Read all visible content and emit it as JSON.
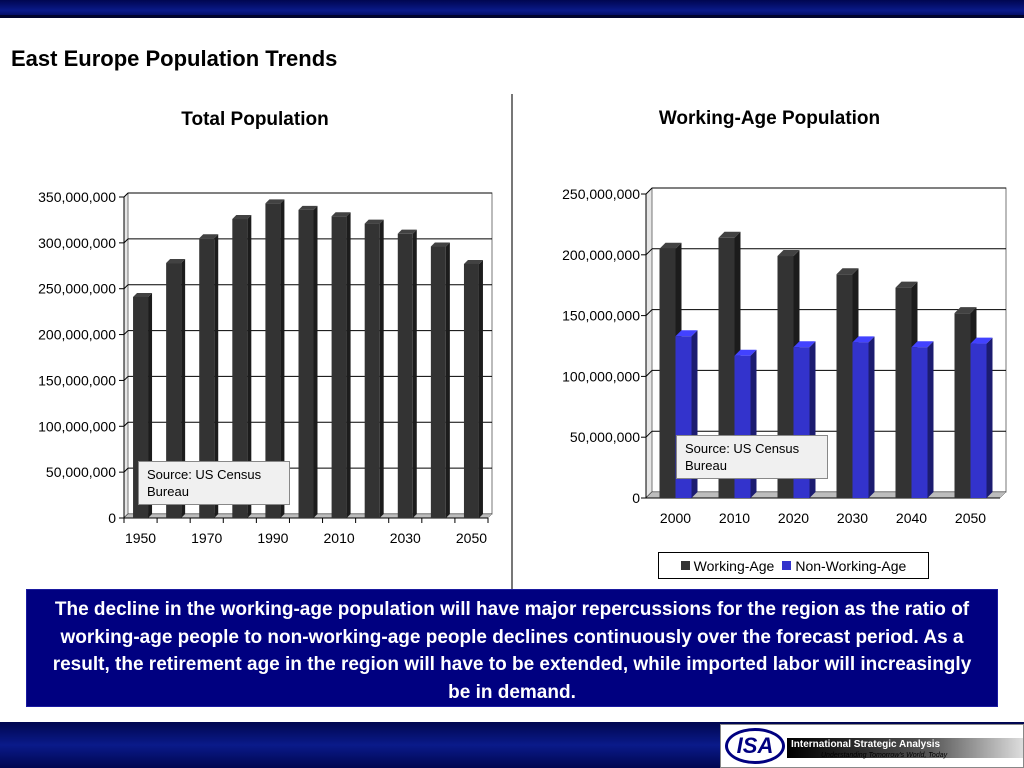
{
  "slide": {
    "title": "East Europe Population Trends",
    "callout": "The decline in the working-age population will have major repercussions for the region as the ratio of working-age people to non-working-age people declines continuously over the forecast period.  As a result, the retirement age in the region will have to be extended, while imported labor will increasingly be in demand."
  },
  "logo": {
    "mark": "ISA",
    "name": "International Strategic Analysis",
    "tagline": "Understanding Tomorrow's World, Today"
  },
  "colors": {
    "bar_dark": "#333333",
    "bar_blue": "#3333cc",
    "callout_bg": "#000080",
    "bar_top_band": "#000650"
  },
  "chart_data": [
    {
      "type": "bar",
      "title": "Total Population",
      "categories": [
        "1950",
        "1960",
        "1970",
        "1980",
        "1990",
        "2000",
        "2010",
        "2020",
        "2030",
        "2040",
        "2050"
      ],
      "x_tick_labels": [
        "1950",
        "1970",
        "1990",
        "2010",
        "2030",
        "2050"
      ],
      "series": [
        {
          "values": [
            241000000,
            278000000,
            305000000,
            326000000,
            343000000,
            336000000,
            329000000,
            321000000,
            310000000,
            296000000,
            277000000
          ]
        }
      ],
      "y_tick_labels": [
        "0",
        "50,000,000",
        "100,000,000",
        "150,000,000",
        "200,000,000",
        "250,000,000",
        "300,000,000",
        "350,000,000"
      ],
      "ylim": [
        0,
        350000000
      ],
      "grid": true,
      "annotation": "Source: US Census Bureau"
    },
    {
      "type": "bar",
      "title": "Working-Age Population",
      "categories": [
        "2000",
        "2010",
        "2020",
        "2030",
        "2040",
        "2050"
      ],
      "series": [
        {
          "name": "Working-Age",
          "values": [
            205000000,
            214000000,
            199000000,
            184000000,
            173000000,
            152000000
          ]
        },
        {
          "name": "Non-Working-Age",
          "values": [
            133000000,
            117000000,
            124000000,
            128000000,
            124000000,
            127000000
          ]
        }
      ],
      "y_tick_labels": [
        "0",
        "50,000,000",
        "100,000,000",
        "150,000,000",
        "200,000,000",
        "250,000,000"
      ],
      "ylim": [
        0,
        250000000
      ],
      "grid": true,
      "legend": "bottom",
      "annotation": "Source: US Census Bureau"
    }
  ]
}
